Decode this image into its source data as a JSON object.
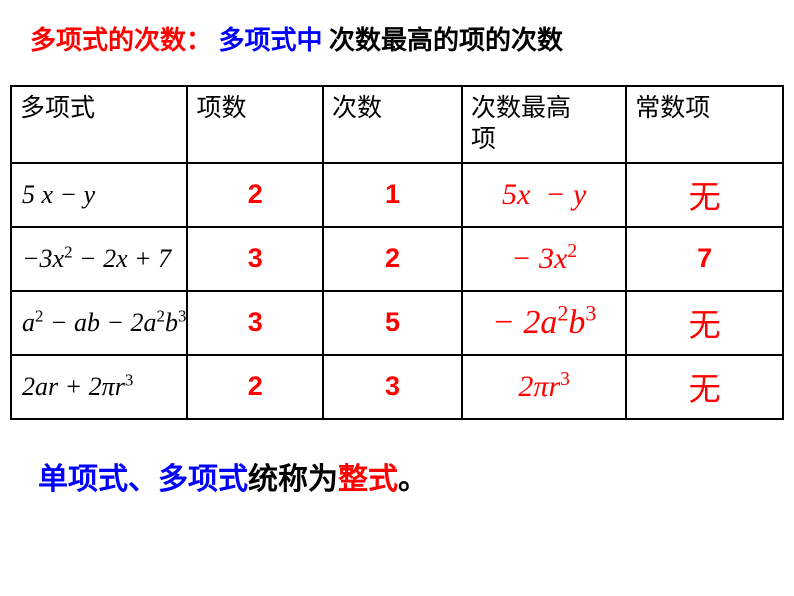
{
  "colors": {
    "red": "#ff0000",
    "blue": "#0000ff",
    "black": "#000000",
    "border": "#000000",
    "background": "#ffffff"
  },
  "title": {
    "part1": "多项式的次数：",
    "part2": "多项式中",
    "part3": "次数最高的项的次数"
  },
  "headers": {
    "c1": "多项式",
    "c2": "项数",
    "c3": "次数",
    "c4_line1": "次数最高",
    "c4_line2": "项",
    "c5": "常数项"
  },
  "rows": [
    {
      "poly_html": "5<span class='upn'> </span>x − y",
      "terms": "2",
      "degree": "1",
      "highest_html": "5x&nbsp;&nbsp;− y",
      "constant": "无",
      "constant_is_cn": true
    },
    {
      "poly_html": "−3x<sup>2</sup> − 2x + 7",
      "terms": "3",
      "degree": "2",
      "highest_html": "− 3x<sup>2</sup>",
      "constant": "7",
      "constant_is_cn": false
    },
    {
      "poly_html": "a<sup>2</sup> − ab − 2a<sup>2</sup>b<sup>3</sup>",
      "terms": "3",
      "degree": "5",
      "highest_html": "− 2a<sup>2</sup>b<sup>3</sup>",
      "constant": "无",
      "constant_is_cn": true
    },
    {
      "poly_html": "2ar + 2πr<sup>3</sup>",
      "terms": "2",
      "degree": "3",
      "highest_html": "2πr<sup>3</sup>",
      "constant": "无",
      "constant_is_cn": true
    }
  ],
  "bottom": {
    "p1": "单项式、多项式",
    "p2": "统称为",
    "p3": "整式",
    "p4": "。"
  }
}
